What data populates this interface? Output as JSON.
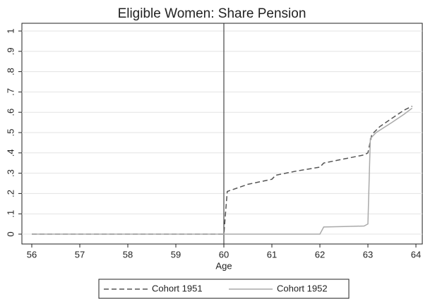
{
  "chart_data": {
    "type": "line",
    "title": "Eligible Women: Share Pension",
    "x_label": "Age",
    "xlim": [
      56,
      64
    ],
    "xticks": [
      56,
      57,
      58,
      59,
      60,
      61,
      62,
      63,
      64
    ],
    "ylim": [
      0,
      1
    ],
    "yticks": [
      0,
      {
        "value": 0.1,
        "label": ".1"
      },
      {
        "value": 0.2,
        "label": ".2"
      },
      {
        "value": 0.3,
        "label": ".3"
      },
      {
        "value": 0.4,
        "label": ".4"
      },
      {
        "value": 0.5,
        "label": ".5"
      },
      {
        "value": 0.6,
        "label": ".6"
      },
      {
        "value": 0.7,
        "label": ".7"
      },
      {
        "value": 0.8,
        "label": ".8"
      },
      {
        "value": 0.9,
        "label": ".9"
      },
      1
    ],
    "grid": true,
    "xline": 60,
    "legend": "bottom",
    "series": [
      {
        "name": "Cohort 1951",
        "color": "#555555",
        "style": "dashed",
        "x": [
          56,
          60,
          60.07,
          60.5,
          61,
          61.08,
          61.5,
          62,
          62.08,
          62.5,
          62.92,
          63,
          63.08,
          63.25,
          63.5,
          63.75,
          63.92
        ],
        "values": [
          0,
          0,
          0.21,
          0.245,
          0.27,
          0.29,
          0.31,
          0.33,
          0.35,
          0.37,
          0.39,
          0.4,
          0.49,
          0.53,
          0.57,
          0.61,
          0.63
        ]
      },
      {
        "name": "Cohort 1952",
        "color": "#aaaaaa",
        "style": "solid",
        "x": [
          56,
          62,
          62.08,
          62.5,
          62.92,
          63,
          63.05,
          63.17,
          63.5,
          63.75,
          63.92
        ],
        "values": [
          0,
          0,
          0.035,
          0.037,
          0.04,
          0.05,
          0.47,
          0.5,
          0.55,
          0.59,
          0.62
        ]
      }
    ]
  }
}
